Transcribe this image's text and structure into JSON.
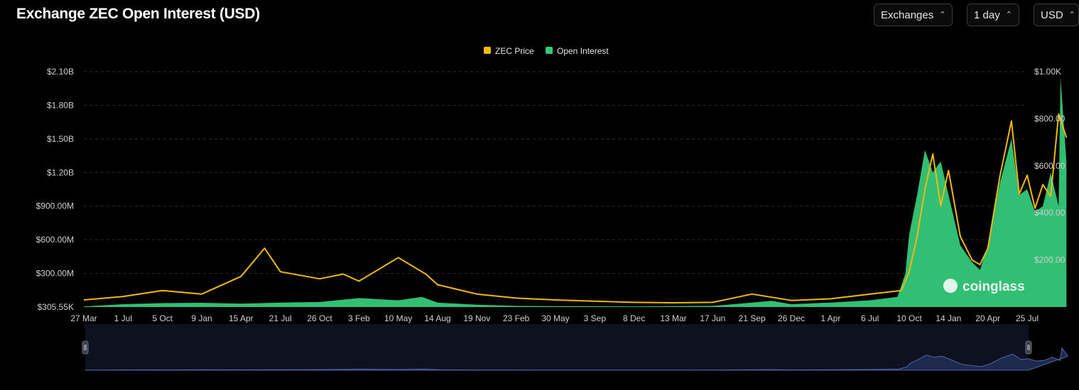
{
  "header": {
    "title": "Exchange ZEC Open Interest (USD)",
    "controls": [
      {
        "label": "Exchanges",
        "icon": "chevron-updown-icon"
      },
      {
        "label": "1 day",
        "icon": "chevron-updown-icon"
      },
      {
        "label": "USD",
        "icon": "chevron-updown-icon"
      }
    ]
  },
  "watermark": {
    "text": "coinglass",
    "icon": "coinglass-logo-icon"
  },
  "colors": {
    "price": "#f0b90b",
    "open_interest": "#35c97a",
    "grid": "#2a2a2a",
    "axis_text": "#cfcfcf",
    "navigator_fill": "#1e2a4d",
    "navigator_line": "#4f66ad"
  },
  "chart_data": {
    "type": "area",
    "legend": {
      "position": "top-center",
      "entries": [
        "ZEC Price",
        "Open Interest"
      ]
    },
    "left_axis_ticks": [
      "$2.10B",
      "$1.80B",
      "$1.50B",
      "$1.20B",
      "$900.00M",
      "$600.00M",
      "$300.00M",
      "$305.55K"
    ],
    "right_axis_ticks": [
      "$1.00K",
      "$800.00",
      "$600.00",
      "$400.00",
      "$200.00"
    ],
    "ylim_left": [
      0,
      2100000000
    ],
    "ylim_right": [
      0,
      1000
    ],
    "grid": true,
    "x_ticks": [
      "27 Mar",
      "1 Jul",
      "5 Oct",
      "9 Jan",
      "15 Apr",
      "21 Jul",
      "26 Oct",
      "3 Feb",
      "10 May",
      "14 Aug",
      "19 Nov",
      "23 Feb",
      "30 May",
      "3 Sep",
      "8 Dec",
      "13 Mar",
      "17 Jun",
      "21 Sep",
      "26 Dec",
      "1 Apr",
      "6 Jul",
      "10 Oct",
      "14 Jan",
      "20 Apr",
      "25 Jul"
    ],
    "series": [
      {
        "name": "ZEC Price",
        "axis": "right",
        "type": "line",
        "x": [
          0,
          1,
          2,
          3,
          4,
          4.6,
          5,
          6,
          6.6,
          7,
          8,
          8.7,
          9,
          10,
          11,
          12,
          13,
          14,
          15,
          16,
          17,
          18,
          19,
          20,
          20.8,
          21,
          21.2,
          21.4,
          21.6,
          21.8,
          22,
          22.3,
          22.6,
          22.8,
          23,
          23.3,
          23.6,
          23.8,
          24,
          24.2,
          24.4,
          24.6,
          24.8,
          25
        ],
        "values": [
          30,
          45,
          70,
          55,
          130,
          250,
          150,
          120,
          140,
          110,
          210,
          140,
          95,
          55,
          38,
          30,
          25,
          20,
          18,
          20,
          55,
          28,
          35,
          55,
          70,
          150,
          300,
          500,
          650,
          430,
          580,
          300,
          200,
          180,
          250,
          550,
          790,
          480,
          560,
          420,
          520,
          470,
          820,
          720
        ]
      },
      {
        "name": "Open Interest",
        "axis": "left",
        "type": "area",
        "x": [
          0,
          1,
          2,
          3,
          4,
          5,
          6,
          7,
          8,
          8.6,
          9,
          10,
          11,
          12,
          13,
          14,
          15,
          16,
          17,
          17.5,
          18,
          19,
          20,
          20.7,
          20.9,
          21,
          21.2,
          21.4,
          21.6,
          21.8,
          22,
          22.3,
          22.6,
          22.8,
          23,
          23.3,
          23.6,
          23.8,
          24,
          24.2,
          24.4,
          24.6,
          24.8,
          24.85,
          25
        ],
        "values": [
          5000000,
          25000000,
          35000000,
          38000000,
          30000000,
          40000000,
          45000000,
          80000000,
          60000000,
          90000000,
          40000000,
          20000000,
          10000000,
          8000000,
          7000000,
          6000000,
          8000000,
          10000000,
          40000000,
          55000000,
          25000000,
          40000000,
          60000000,
          90000000,
          300000000,
          650000000,
          1000000000,
          1400000000,
          1200000000,
          1300000000,
          1000000000,
          550000000,
          400000000,
          330000000,
          550000000,
          1100000000,
          1500000000,
          1000000000,
          1050000000,
          850000000,
          900000000,
          1200000000,
          900000000,
          2050000000,
          1300000000
        ]
      }
    ]
  }
}
